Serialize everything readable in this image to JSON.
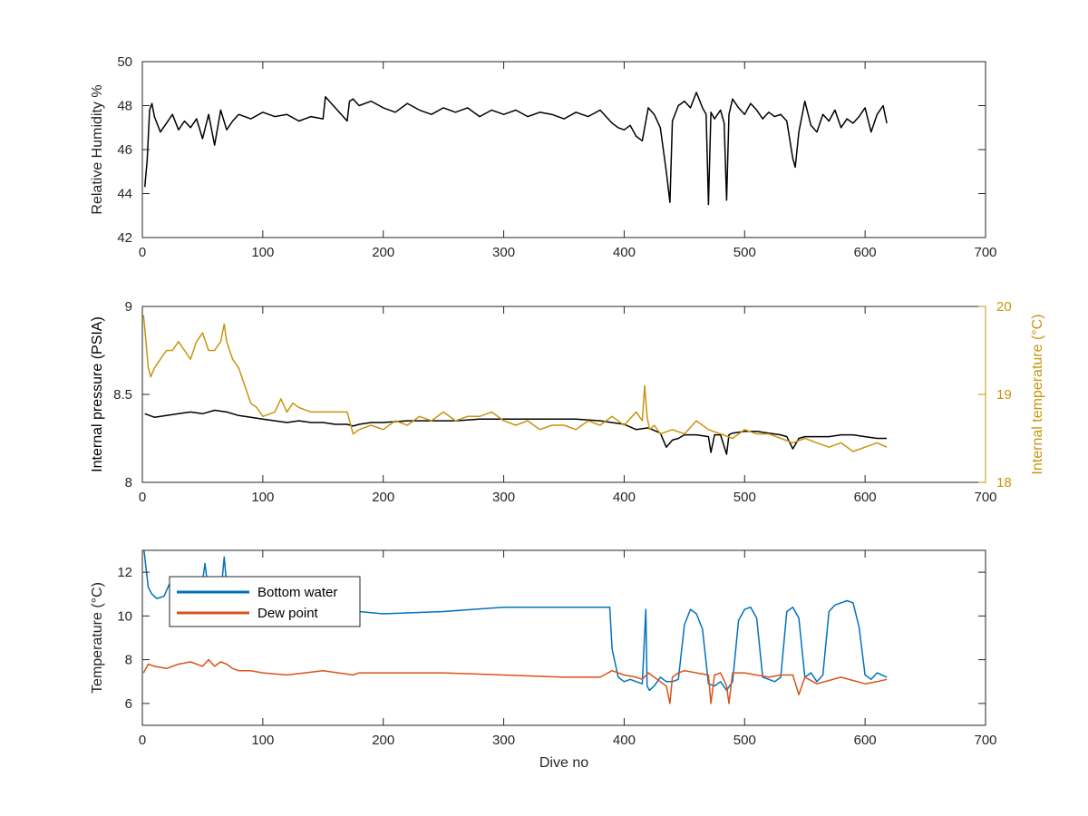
{
  "figure": {
    "colors": {
      "axis": "#262626",
      "black": "#000000",
      "gold": "#c9940d",
      "blue": "#0072bd",
      "orange": "#d95319",
      "background": "#ffffff"
    }
  },
  "chart_data": [
    {
      "type": "line",
      "id": "humidity",
      "xlabel": "",
      "ylabel": "Relative Humidity %",
      "xlim": [
        0,
        700
      ],
      "ylim": [
        42,
        50
      ],
      "xticks": [
        0,
        100,
        200,
        300,
        400,
        500,
        600,
        700
      ],
      "yticks": [
        42,
        44,
        46,
        48,
        50
      ],
      "series": [
        {
          "color": "#000000",
          "x": [
            2,
            4,
            6,
            8,
            10,
            15,
            20,
            25,
            30,
            35,
            40,
            45,
            50,
            55,
            60,
            65,
            70,
            75,
            80,
            90,
            100,
            110,
            120,
            130,
            140,
            150,
            152,
            170,
            172,
            175,
            180,
            190,
            200,
            210,
            220,
            230,
            240,
            250,
            260,
            270,
            280,
            290,
            300,
            310,
            320,
            330,
            340,
            350,
            360,
            370,
            380,
            390,
            395,
            400,
            405,
            410,
            415,
            420,
            425,
            430,
            435,
            438,
            440,
            445,
            450,
            455,
            460,
            465,
            468,
            470,
            472,
            475,
            480,
            483,
            485,
            487,
            490,
            495,
            500,
            505,
            510,
            515,
            520,
            525,
            530,
            535,
            540,
            542,
            545,
            550,
            555,
            560,
            565,
            570,
            575,
            580,
            585,
            590,
            595,
            600,
            605,
            610,
            615,
            618
          ],
          "y": [
            44.3,
            45.5,
            47.8,
            48.1,
            47.5,
            46.8,
            47.2,
            47.6,
            46.9,
            47.3,
            47.0,
            47.4,
            46.5,
            47.6,
            46.2,
            47.8,
            46.9,
            47.3,
            47.6,
            47.4,
            47.7,
            47.5,
            47.6,
            47.3,
            47.5,
            47.4,
            48.4,
            47.3,
            48.2,
            48.3,
            48.0,
            48.2,
            47.9,
            47.7,
            48.1,
            47.8,
            47.6,
            47.9,
            47.7,
            47.9,
            47.5,
            47.8,
            47.6,
            47.8,
            47.5,
            47.7,
            47.6,
            47.4,
            47.7,
            47.5,
            47.8,
            47.2,
            47.0,
            46.9,
            47.1,
            46.6,
            46.4,
            47.9,
            47.6,
            47.0,
            45.0,
            43.6,
            47.3,
            48.0,
            48.2,
            47.9,
            48.6,
            47.9,
            47.6,
            43.5,
            47.7,
            47.4,
            47.8,
            47.2,
            43.7,
            47.6,
            48.3,
            47.9,
            47.6,
            48.1,
            47.8,
            47.4,
            47.7,
            47.5,
            47.6,
            47.3,
            45.6,
            45.2,
            46.8,
            48.2,
            47.1,
            46.8,
            47.6,
            47.3,
            47.8,
            47.0,
            47.4,
            47.2,
            47.5,
            47.9,
            46.8,
            47.6,
            48.0,
            47.2
          ]
        }
      ]
    },
    {
      "type": "line",
      "id": "pressure-temperature",
      "xlabel": "",
      "ylabel": "Internal pressure (PSIA)",
      "ylabel_right": "Internal temperature (°C)",
      "xlim": [
        0,
        700
      ],
      "ylim": [
        8,
        9
      ],
      "ylim_right": [
        18,
        20
      ],
      "xticks": [
        0,
        100,
        200,
        300,
        400,
        500,
        600,
        700
      ],
      "yticks": [
        8,
        8.5,
        9
      ],
      "yticks_right": [
        18,
        19,
        20
      ],
      "series": [
        {
          "axis": "left",
          "color": "#000000",
          "x": [
            2,
            10,
            20,
            30,
            40,
            50,
            60,
            70,
            80,
            90,
            100,
            110,
            120,
            130,
            140,
            150,
            160,
            170,
            175,
            180,
            190,
            200,
            220,
            240,
            260,
            280,
            300,
            320,
            340,
            360,
            380,
            400,
            410,
            420,
            430,
            435,
            440,
            445,
            450,
            460,
            470,
            472,
            475,
            480,
            485,
            487,
            490,
            500,
            510,
            520,
            530,
            535,
            540,
            545,
            550,
            560,
            570,
            580,
            590,
            600,
            610,
            618
          ],
          "y": [
            8.39,
            8.37,
            8.38,
            8.39,
            8.4,
            8.39,
            8.41,
            8.4,
            8.38,
            8.37,
            8.36,
            8.35,
            8.34,
            8.35,
            8.34,
            8.34,
            8.33,
            8.33,
            8.32,
            8.33,
            8.34,
            8.34,
            8.35,
            8.35,
            8.35,
            8.36,
            8.36,
            8.36,
            8.36,
            8.36,
            8.35,
            8.33,
            8.3,
            8.31,
            8.28,
            8.2,
            8.24,
            8.25,
            8.27,
            8.27,
            8.26,
            8.17,
            8.27,
            8.27,
            8.16,
            8.27,
            8.28,
            8.29,
            8.29,
            8.28,
            8.27,
            8.26,
            8.19,
            8.25,
            8.26,
            8.26,
            8.26,
            8.27,
            8.27,
            8.26,
            8.25,
            8.25
          ]
        },
        {
          "axis": "right",
          "color": "#c9940d",
          "x": [
            1,
            3,
            5,
            7,
            10,
            15,
            20,
            25,
            30,
            35,
            40,
            45,
            50,
            55,
            60,
            65,
            68,
            70,
            75,
            80,
            85,
            90,
            95,
            100,
            110,
            115,
            120,
            125,
            130,
            140,
            150,
            160,
            170,
            175,
            180,
            190,
            200,
            210,
            220,
            230,
            240,
            250,
            260,
            270,
            280,
            290,
            300,
            310,
            320,
            330,
            340,
            350,
            360,
            370,
            380,
            390,
            400,
            410,
            415,
            417,
            419,
            421,
            425,
            430,
            440,
            450,
            460,
            470,
            480,
            490,
            500,
            510,
            520,
            530,
            540,
            550,
            560,
            570,
            580,
            590,
            600,
            610,
            618
          ],
          "y": [
            19.9,
            19.6,
            19.3,
            19.2,
            19.3,
            19.4,
            19.5,
            19.5,
            19.6,
            19.5,
            19.4,
            19.6,
            19.7,
            19.5,
            19.5,
            19.6,
            19.8,
            19.6,
            19.4,
            19.3,
            19.1,
            18.9,
            18.85,
            18.75,
            18.8,
            18.95,
            18.8,
            18.9,
            18.85,
            18.8,
            18.8,
            18.8,
            18.8,
            18.55,
            18.6,
            18.65,
            18.6,
            18.7,
            18.65,
            18.75,
            18.7,
            18.8,
            18.7,
            18.75,
            18.75,
            18.8,
            18.7,
            18.65,
            18.7,
            18.6,
            18.65,
            18.65,
            18.6,
            18.7,
            18.65,
            18.75,
            18.65,
            18.8,
            18.7,
            19.1,
            18.75,
            18.6,
            18.65,
            18.55,
            18.6,
            18.55,
            18.7,
            18.6,
            18.55,
            18.5,
            18.6,
            18.55,
            18.55,
            18.5,
            18.45,
            18.5,
            18.45,
            18.4,
            18.45,
            18.35,
            18.4,
            18.45,
            18.4
          ]
        }
      ]
    },
    {
      "type": "line",
      "id": "temperature",
      "xlabel": "Dive no",
      "ylabel": "Temperature (°C)",
      "xlim": [
        0,
        700
      ],
      "ylim": [
        5,
        13
      ],
      "xticks": [
        0,
        100,
        200,
        300,
        400,
        500,
        600,
        700
      ],
      "yticks": [
        6,
        8,
        10,
        12
      ],
      "legend": {
        "location": "top-left",
        "entries": [
          "Bottom water",
          "Dew point"
        ]
      },
      "series": [
        {
          "name": "Bottom water",
          "color": "#0072bd",
          "x": [
            1,
            3,
            5,
            8,
            12,
            18,
            22,
            25,
            30,
            40,
            50,
            52,
            54,
            60,
            66,
            68,
            70,
            75,
            80,
            90,
            100,
            120,
            150,
            180,
            200,
            250,
            300,
            350,
            388,
            390,
            395,
            400,
            405,
            410,
            415,
            418,
            419,
            421,
            425,
            430,
            435,
            440,
            445,
            450,
            455,
            460,
            465,
            470,
            475,
            480,
            485,
            490,
            495,
            500,
            505,
            510,
            515,
            520,
            525,
            530,
            535,
            540,
            545,
            550,
            555,
            560,
            565,
            570,
            575,
            580,
            585,
            590,
            595,
            600,
            605,
            610,
            618
          ],
          "y": [
            13.2,
            12.2,
            11.3,
            11.0,
            10.8,
            10.9,
            11.4,
            11.7,
            11.6,
            11.5,
            11.6,
            12.4,
            11.5,
            11.6,
            11.5,
            12.7,
            11.4,
            11.2,
            10.9,
            10.6,
            10.5,
            10.4,
            10.3,
            10.2,
            10.1,
            10.2,
            10.4,
            10.4,
            10.4,
            8.5,
            7.2,
            7.0,
            7.1,
            7.0,
            6.9,
            10.3,
            6.8,
            6.6,
            6.8,
            7.2,
            7.0,
            7.0,
            7.1,
            9.6,
            10.3,
            10.1,
            9.4,
            6.9,
            6.8,
            7.0,
            6.6,
            7.0,
            9.8,
            10.3,
            10.4,
            9.9,
            7.2,
            7.1,
            7.0,
            7.2,
            10.2,
            10.4,
            9.9,
            7.2,
            7.4,
            7.0,
            7.3,
            10.2,
            10.5,
            10.6,
            10.7,
            10.6,
            9.5,
            7.3,
            7.1,
            7.4,
            7.2
          ]
        },
        {
          "name": "Dew point",
          "color": "#d95319",
          "x": [
            1,
            5,
            10,
            20,
            30,
            40,
            50,
            55,
            60,
            65,
            70,
            75,
            80,
            90,
            100,
            120,
            150,
            175,
            180,
            200,
            250,
            300,
            350,
            380,
            390,
            400,
            410,
            415,
            420,
            425,
            430,
            435,
            438,
            440,
            445,
            450,
            460,
            470,
            472,
            475,
            480,
            485,
            487,
            490,
            500,
            520,
            530,
            540,
            545,
            550,
            560,
            580,
            600,
            610,
            618
          ],
          "y": [
            7.4,
            7.8,
            7.7,
            7.6,
            7.8,
            7.9,
            7.7,
            8.0,
            7.7,
            7.9,
            7.8,
            7.6,
            7.5,
            7.5,
            7.4,
            7.3,
            7.5,
            7.3,
            7.4,
            7.4,
            7.4,
            7.3,
            7.2,
            7.2,
            7.5,
            7.3,
            7.2,
            7.1,
            7.4,
            7.2,
            7.0,
            6.8,
            6.0,
            7.2,
            7.4,
            7.5,
            7.4,
            7.3,
            6.0,
            7.3,
            7.4,
            6.8,
            6.0,
            7.4,
            7.4,
            7.2,
            7.3,
            7.3,
            6.4,
            7.2,
            6.9,
            7.2,
            6.9,
            7.0,
            7.1
          ]
        }
      ]
    }
  ]
}
